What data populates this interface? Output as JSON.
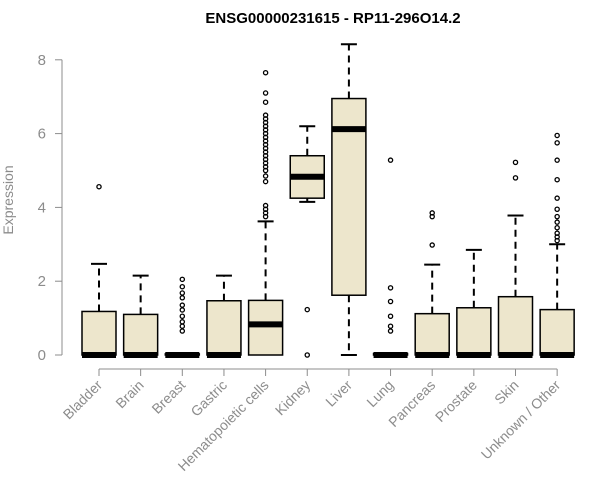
{
  "chart_data": {
    "type": "boxplot",
    "title": "ENSG00000231615 - RP11-296O14.2",
    "ylabel": "Expression",
    "xlabel": "",
    "ylim": [
      0,
      8.4
    ],
    "yticks": [
      0,
      2,
      4,
      6,
      8
    ],
    "colors": {
      "box_fill": "#ede6cc",
      "stroke": "#000000",
      "axis": "#8c8c8c"
    },
    "groups": [
      {
        "name": "Bladder",
        "q1": 0,
        "median": 0,
        "q3": 1.18,
        "whisker_low": 0,
        "whisker_high": 2.47,
        "outliers": [
          4.56
        ]
      },
      {
        "name": "Brain",
        "q1": 0,
        "median": 0,
        "q3": 1.1,
        "whisker_low": 0,
        "whisker_high": 2.15,
        "outliers": []
      },
      {
        "name": "Breast",
        "q1": 0,
        "median": 0,
        "q3": 0.03,
        "whisker_low": 0,
        "whisker_high": 0.03,
        "outliers": [
          0.65,
          0.78,
          0.9,
          1.05,
          1.22,
          1.35,
          1.55,
          1.68,
          1.85,
          2.05
        ]
      },
      {
        "name": "Gastric",
        "q1": 0,
        "median": 0,
        "q3": 1.47,
        "whisker_low": 0,
        "whisker_high": 2.15,
        "outliers": []
      },
      {
        "name": "Hematopoietic cells",
        "q1": 0,
        "median": 0.83,
        "q3": 1.48,
        "whisker_low": 0,
        "whisker_high": 3.62,
        "outliers": [
          3.75,
          3.85,
          3.95,
          4.05,
          4.7,
          4.85,
          5.0,
          5.1,
          5.2,
          5.3,
          5.4,
          5.5,
          5.6,
          5.7,
          5.8,
          5.9,
          6.0,
          6.1,
          6.2,
          6.3,
          6.4,
          6.5,
          6.85,
          7.1,
          7.65
        ]
      },
      {
        "name": "Kidney",
        "q1": 4.25,
        "median": 4.83,
        "q3": 5.4,
        "whisker_low": 4.15,
        "whisker_high": 6.2,
        "outliers": [
          1.23,
          0
        ]
      },
      {
        "name": "Liver",
        "q1": 1.62,
        "median": 6.12,
        "q3": 6.95,
        "whisker_low": 0,
        "whisker_high": 8.42,
        "outliers": []
      },
      {
        "name": "Lung",
        "q1": 0,
        "median": 0,
        "q3": 0.04,
        "whisker_low": 0,
        "whisker_high": 0.04,
        "outliers": [
          0.65,
          0.78,
          1.05,
          1.45,
          1.82,
          5.28
        ]
      },
      {
        "name": "Pancreas",
        "q1": 0,
        "median": 0,
        "q3": 1.12,
        "whisker_low": 0,
        "whisker_high": 2.45,
        "outliers": [
          2.98,
          3.75,
          3.85
        ]
      },
      {
        "name": "Prostate",
        "q1": 0,
        "median": 0,
        "q3": 1.28,
        "whisker_low": 0,
        "whisker_high": 2.85,
        "outliers": []
      },
      {
        "name": "Skin",
        "q1": 0,
        "median": 0,
        "q3": 1.58,
        "whisker_low": 0,
        "whisker_high": 3.78,
        "outliers": [
          4.8,
          5.22
        ]
      },
      {
        "name": "Unknown / Other",
        "q1": 0,
        "median": 0,
        "q3": 1.23,
        "whisker_low": 0,
        "whisker_high": 3.0,
        "outliers": [
          3.1,
          3.2,
          3.3,
          3.45,
          3.6,
          3.75,
          3.95,
          4.25,
          4.75,
          5.28,
          5.75,
          5.95
        ]
      }
    ]
  }
}
